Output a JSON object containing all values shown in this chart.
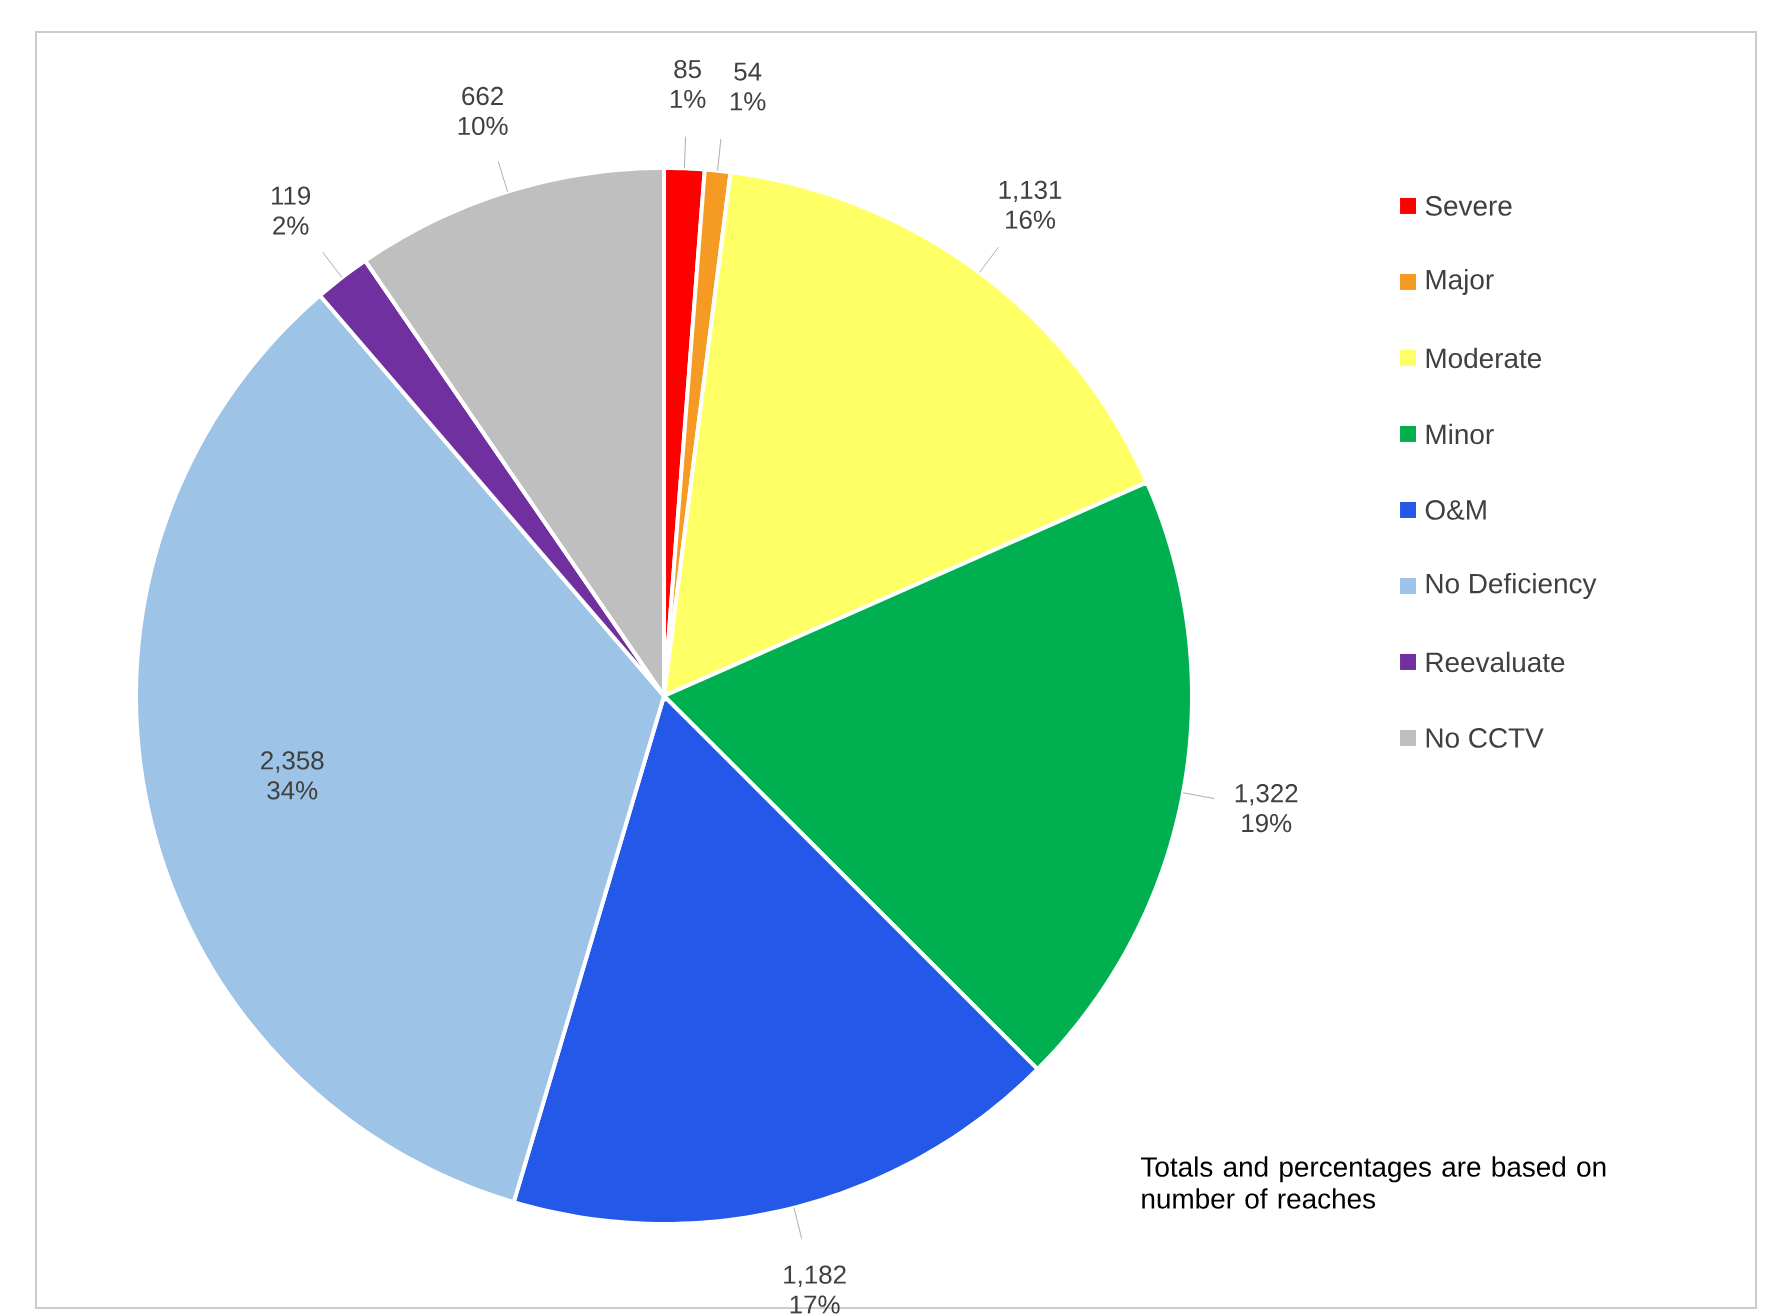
{
  "chart_data": {
    "type": "pie",
    "categories": [
      "Severe",
      "Major",
      "Moderate",
      "Minor",
      "O&M",
      "No Deficiency",
      "Reevaluate",
      "No CCTV"
    ],
    "values": [
      85,
      54,
      1131,
      1322,
      1182,
      2358,
      119,
      662
    ],
    "colors": [
      "#ff0000",
      "#f59a23",
      "#ffff66",
      "#00b050",
      "#2458e8",
      "#9dc3e6",
      "#7030a0",
      "#bfbfbf"
    ],
    "value_labels": [
      "85 1%",
      "54 1%",
      "1,131 16%",
      "1,322 19%",
      "1,182 17%",
      "2,358 34%",
      "119 2%",
      "662 10%"
    ],
    "legend": "right",
    "annotations": [
      "Totals and percentages are based on number of reaches"
    ]
  }
}
